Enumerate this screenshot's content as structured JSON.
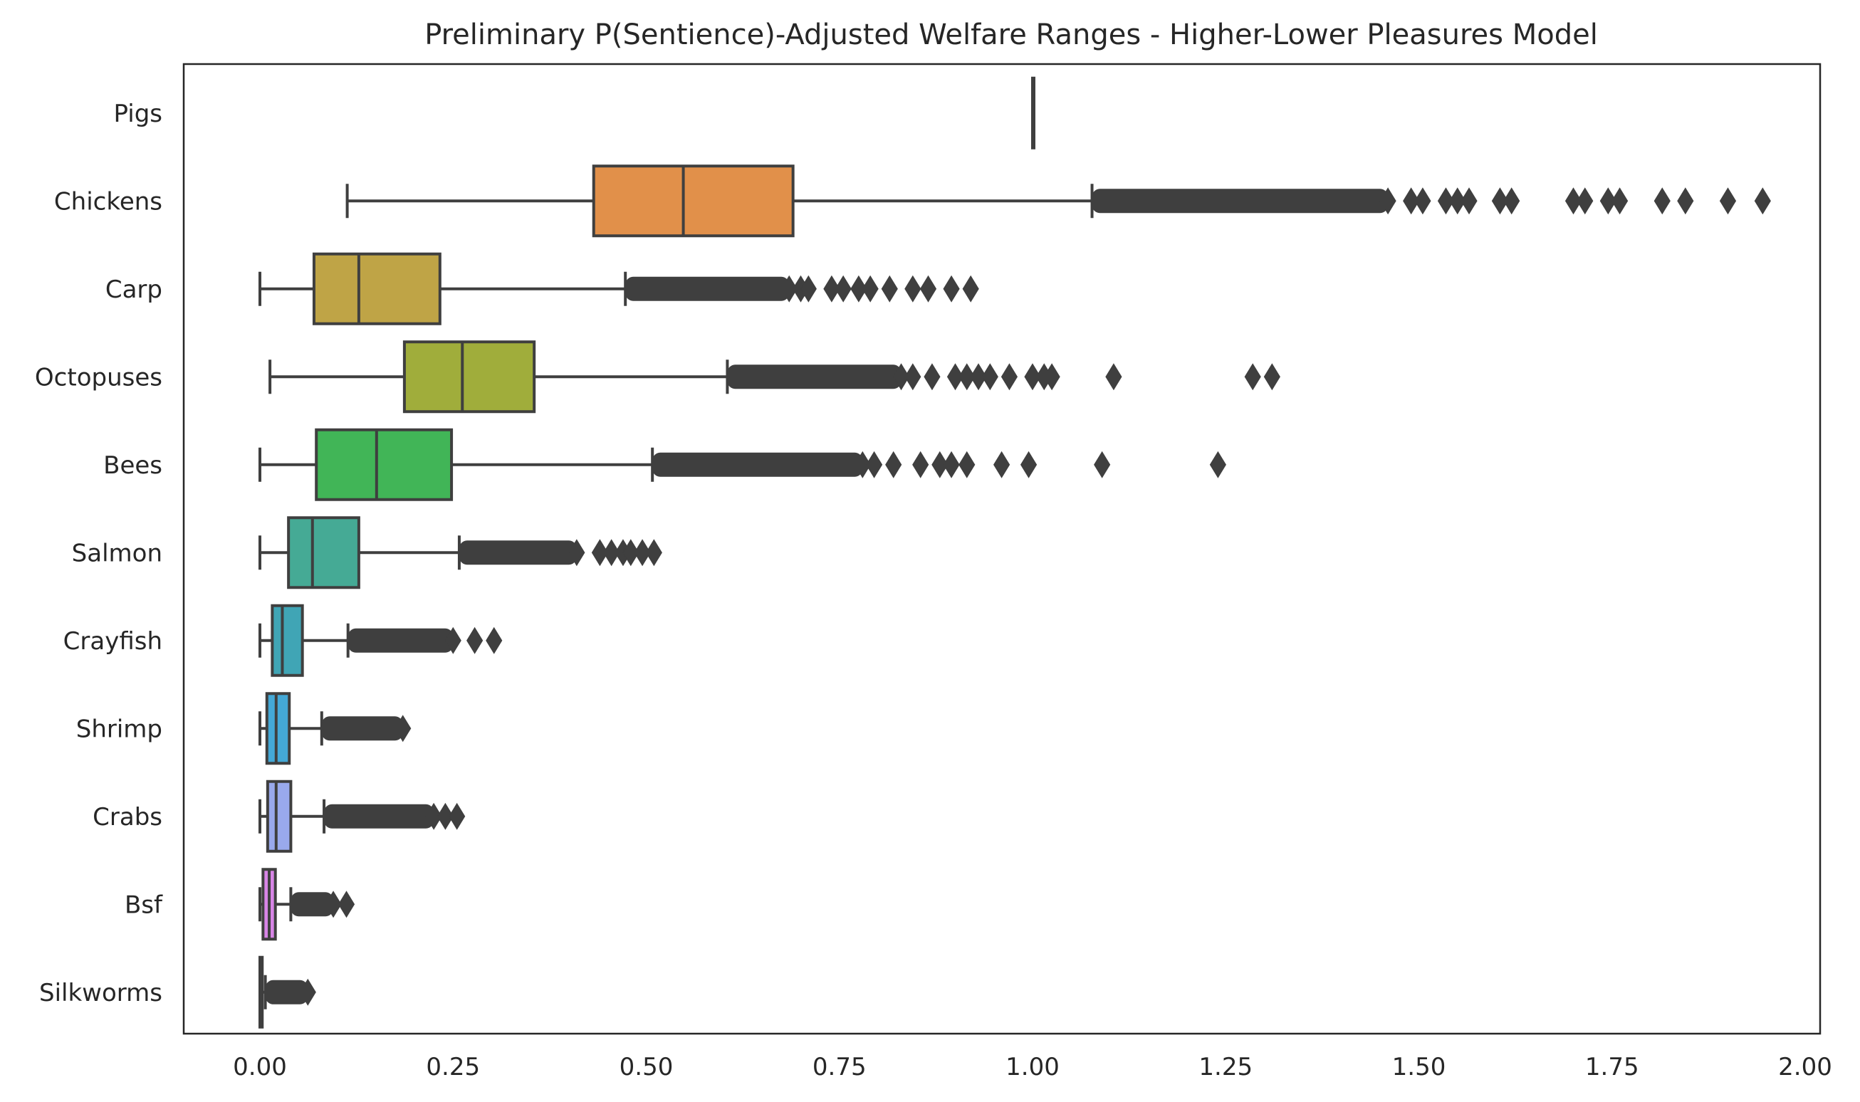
{
  "chart_data": {
    "type": "box",
    "orientation": "horizontal",
    "title": "Preliminary P(Sentience)-Adjusted Welfare Ranges - Higher-Lower Pleasures Model",
    "xlabel": "",
    "ylabel": "",
    "xlim": [
      -0.1,
      2.02
    ],
    "x_ticks": [
      0.0,
      0.25,
      0.5,
      0.75,
      1.0,
      1.25,
      1.5,
      1.75,
      2.0
    ],
    "x_tick_labels": [
      "0.00",
      "0.25",
      "0.50",
      "0.75",
      "1.00",
      "1.25",
      "1.50",
      "1.75",
      "2.00"
    ],
    "grid": false,
    "categories": [
      "Pigs",
      "Chickens",
      "Carp",
      "Octopuses",
      "Bees",
      "Salmon",
      "Crayfish",
      "Shrimp",
      "Crabs",
      "Bsf",
      "Silkworms"
    ],
    "series": [
      {
        "name": "Pigs",
        "color": "#ffffff",
        "whisker_low": 1.0,
        "q1": 1.0,
        "median": 1.0,
        "q3": 1.0,
        "whisker_high": 1.0,
        "outliers_dense_from": null,
        "outliers_dense_to": null,
        "outliers": []
      },
      {
        "name": "Chickens",
        "color": "#e1904a",
        "whisker_low": 0.113,
        "q1": 0.432,
        "median": 0.548,
        "q3": 0.69,
        "whisker_high": 1.077,
        "outliers_dense_from": 1.077,
        "outliers_dense_to": 1.46,
        "outliers": [
          1.49,
          1.505,
          1.535,
          1.55,
          1.565,
          1.605,
          1.62,
          1.7,
          1.715,
          1.745,
          1.76,
          1.815,
          1.845,
          1.9,
          1.945
        ]
      },
      {
        "name": "Carp",
        "color": "#bfa446",
        "whisker_low": 0.0,
        "q1": 0.07,
        "median": 0.128,
        "q3": 0.233,
        "whisker_high": 0.473,
        "outliers_dense_from": 0.473,
        "outliers_dense_to": 0.685,
        "outliers": [
          0.7,
          0.71,
          0.74,
          0.755,
          0.775,
          0.79,
          0.815,
          0.845,
          0.865,
          0.895,
          0.92
        ]
      },
      {
        "name": "Octopuses",
        "color": "#a0ad3b",
        "whisker_low": 0.013,
        "q1": 0.187,
        "median": 0.262,
        "q3": 0.355,
        "whisker_high": 0.605,
        "outliers_dense_from": 0.605,
        "outliers_dense_to": 0.83,
        "outliers": [
          0.845,
          0.87,
          0.9,
          0.915,
          0.93,
          0.945,
          0.97,
          1.0,
          1.015,
          1.025,
          1.105,
          1.285,
          1.31
        ]
      },
      {
        "name": "Bees",
        "color": "#41b557",
        "whisker_low": 0.0,
        "q1": 0.073,
        "median": 0.151,
        "q3": 0.248,
        "whisker_high": 0.508,
        "outliers_dense_from": 0.508,
        "outliers_dense_to": 0.78,
        "outliers": [
          0.795,
          0.82,
          0.855,
          0.88,
          0.895,
          0.915,
          0.96,
          0.995,
          1.09,
          1.24
        ]
      },
      {
        "name": "Salmon",
        "color": "#45aa95",
        "whisker_low": 0.0,
        "q1": 0.037,
        "median": 0.068,
        "q3": 0.128,
        "whisker_high": 0.258,
        "outliers_dense_from": 0.258,
        "outliers_dense_to": 0.41,
        "outliers": [
          0.44,
          0.455,
          0.47,
          0.48,
          0.495,
          0.51
        ]
      },
      {
        "name": "Crayfish",
        "color": "#40a5b5",
        "whisker_low": 0.0,
        "q1": 0.016,
        "median": 0.029,
        "q3": 0.055,
        "whisker_high": 0.114,
        "outliers_dense_from": 0.114,
        "outliers_dense_to": 0.25,
        "outliers": [
          0.278,
          0.303
        ]
      },
      {
        "name": "Shrimp",
        "color": "#44a8d6",
        "whisker_low": 0.0,
        "q1": 0.009,
        "median": 0.021,
        "q3": 0.038,
        "whisker_high": 0.08,
        "outliers_dense_from": 0.08,
        "outliers_dense_to": 0.185,
        "outliers": []
      },
      {
        "name": "Crabs",
        "color": "#99a9ec",
        "whisker_low": 0.0,
        "q1": 0.01,
        "median": 0.021,
        "q3": 0.04,
        "whisker_high": 0.083,
        "outliers_dense_from": 0.083,
        "outliers_dense_to": 0.225,
        "outliers": [
          0.24,
          0.255
        ]
      },
      {
        "name": "Bsf",
        "color": "#d885e6",
        "whisker_low": 0.0,
        "q1": 0.004,
        "median": 0.012,
        "q3": 0.02,
        "whisker_high": 0.04,
        "outliers_dense_from": 0.04,
        "outliers_dense_to": 0.095,
        "outliers": [
          0.112
        ]
      },
      {
        "name": "Silkworms",
        "color": "#eb84c0",
        "whisker_low": 0.0,
        "q1": 0.0,
        "median": 0.001,
        "q3": 0.003,
        "whisker_high": 0.007,
        "outliers_dense_from": 0.007,
        "outliers_dense_to": 0.062,
        "outliers": []
      }
    ]
  }
}
